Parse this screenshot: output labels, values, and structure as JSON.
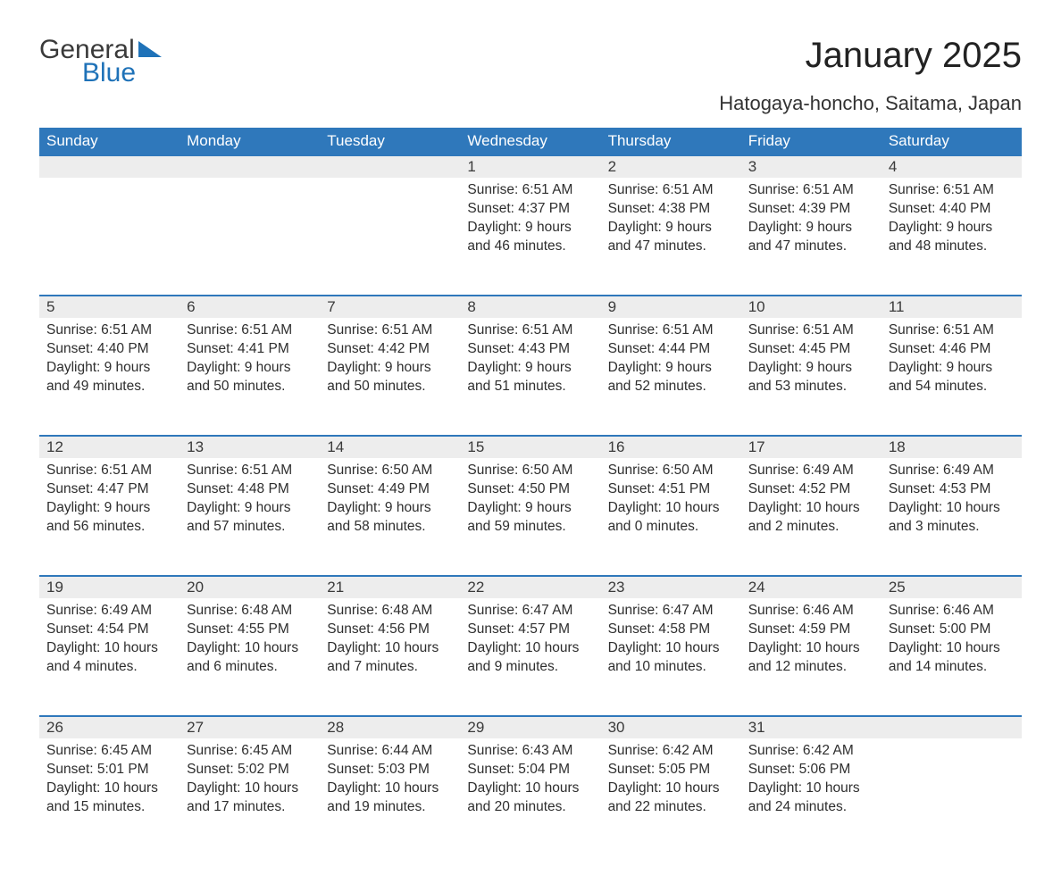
{
  "logo": {
    "word1": "General",
    "word2": "Blue"
  },
  "title": "January 2025",
  "subtitle": "Hatogaya-honcho, Saitama, Japan",
  "colors": {
    "header_bg": "#2f78bb",
    "header_text": "#ffffff",
    "daynum_bg": "#ededed",
    "daynum_border": "#2f78bb",
    "body_text": "#2e2e2e",
    "logo_gray": "#3a3a3a",
    "logo_blue": "#1f72b8",
    "page_bg": "#ffffff"
  },
  "day_headers": [
    "Sunday",
    "Monday",
    "Tuesday",
    "Wednesday",
    "Thursday",
    "Friday",
    "Saturday"
  ],
  "weeks": [
    [
      null,
      null,
      null,
      {
        "n": "1",
        "sunrise": "Sunrise: 6:51 AM",
        "sunset": "Sunset: 4:37 PM",
        "d1": "Daylight: 9 hours",
        "d2": "and 46 minutes."
      },
      {
        "n": "2",
        "sunrise": "Sunrise: 6:51 AM",
        "sunset": "Sunset: 4:38 PM",
        "d1": "Daylight: 9 hours",
        "d2": "and 47 minutes."
      },
      {
        "n": "3",
        "sunrise": "Sunrise: 6:51 AM",
        "sunset": "Sunset: 4:39 PM",
        "d1": "Daylight: 9 hours",
        "d2": "and 47 minutes."
      },
      {
        "n": "4",
        "sunrise": "Sunrise: 6:51 AM",
        "sunset": "Sunset: 4:40 PM",
        "d1": "Daylight: 9 hours",
        "d2": "and 48 minutes."
      }
    ],
    [
      {
        "n": "5",
        "sunrise": "Sunrise: 6:51 AM",
        "sunset": "Sunset: 4:40 PM",
        "d1": "Daylight: 9 hours",
        "d2": "and 49 minutes."
      },
      {
        "n": "6",
        "sunrise": "Sunrise: 6:51 AM",
        "sunset": "Sunset: 4:41 PM",
        "d1": "Daylight: 9 hours",
        "d2": "and 50 minutes."
      },
      {
        "n": "7",
        "sunrise": "Sunrise: 6:51 AM",
        "sunset": "Sunset: 4:42 PM",
        "d1": "Daylight: 9 hours",
        "d2": "and 50 minutes."
      },
      {
        "n": "8",
        "sunrise": "Sunrise: 6:51 AM",
        "sunset": "Sunset: 4:43 PM",
        "d1": "Daylight: 9 hours",
        "d2": "and 51 minutes."
      },
      {
        "n": "9",
        "sunrise": "Sunrise: 6:51 AM",
        "sunset": "Sunset: 4:44 PM",
        "d1": "Daylight: 9 hours",
        "d2": "and 52 minutes."
      },
      {
        "n": "10",
        "sunrise": "Sunrise: 6:51 AM",
        "sunset": "Sunset: 4:45 PM",
        "d1": "Daylight: 9 hours",
        "d2": "and 53 minutes."
      },
      {
        "n": "11",
        "sunrise": "Sunrise: 6:51 AM",
        "sunset": "Sunset: 4:46 PM",
        "d1": "Daylight: 9 hours",
        "d2": "and 54 minutes."
      }
    ],
    [
      {
        "n": "12",
        "sunrise": "Sunrise: 6:51 AM",
        "sunset": "Sunset: 4:47 PM",
        "d1": "Daylight: 9 hours",
        "d2": "and 56 minutes."
      },
      {
        "n": "13",
        "sunrise": "Sunrise: 6:51 AM",
        "sunset": "Sunset: 4:48 PM",
        "d1": "Daylight: 9 hours",
        "d2": "and 57 minutes."
      },
      {
        "n": "14",
        "sunrise": "Sunrise: 6:50 AM",
        "sunset": "Sunset: 4:49 PM",
        "d1": "Daylight: 9 hours",
        "d2": "and 58 minutes."
      },
      {
        "n": "15",
        "sunrise": "Sunrise: 6:50 AM",
        "sunset": "Sunset: 4:50 PM",
        "d1": "Daylight: 9 hours",
        "d2": "and 59 minutes."
      },
      {
        "n": "16",
        "sunrise": "Sunrise: 6:50 AM",
        "sunset": "Sunset: 4:51 PM",
        "d1": "Daylight: 10 hours",
        "d2": "and 0 minutes."
      },
      {
        "n": "17",
        "sunrise": "Sunrise: 6:49 AM",
        "sunset": "Sunset: 4:52 PM",
        "d1": "Daylight: 10 hours",
        "d2": "and 2 minutes."
      },
      {
        "n": "18",
        "sunrise": "Sunrise: 6:49 AM",
        "sunset": "Sunset: 4:53 PM",
        "d1": "Daylight: 10 hours",
        "d2": "and 3 minutes."
      }
    ],
    [
      {
        "n": "19",
        "sunrise": "Sunrise: 6:49 AM",
        "sunset": "Sunset: 4:54 PM",
        "d1": "Daylight: 10 hours",
        "d2": "and 4 minutes."
      },
      {
        "n": "20",
        "sunrise": "Sunrise: 6:48 AM",
        "sunset": "Sunset: 4:55 PM",
        "d1": "Daylight: 10 hours",
        "d2": "and 6 minutes."
      },
      {
        "n": "21",
        "sunrise": "Sunrise: 6:48 AM",
        "sunset": "Sunset: 4:56 PM",
        "d1": "Daylight: 10 hours",
        "d2": "and 7 minutes."
      },
      {
        "n": "22",
        "sunrise": "Sunrise: 6:47 AM",
        "sunset": "Sunset: 4:57 PM",
        "d1": "Daylight: 10 hours",
        "d2": "and 9 minutes."
      },
      {
        "n": "23",
        "sunrise": "Sunrise: 6:47 AM",
        "sunset": "Sunset: 4:58 PM",
        "d1": "Daylight: 10 hours",
        "d2": "and 10 minutes."
      },
      {
        "n": "24",
        "sunrise": "Sunrise: 6:46 AM",
        "sunset": "Sunset: 4:59 PM",
        "d1": "Daylight: 10 hours",
        "d2": "and 12 minutes."
      },
      {
        "n": "25",
        "sunrise": "Sunrise: 6:46 AM",
        "sunset": "Sunset: 5:00 PM",
        "d1": "Daylight: 10 hours",
        "d2": "and 14 minutes."
      }
    ],
    [
      {
        "n": "26",
        "sunrise": "Sunrise: 6:45 AM",
        "sunset": "Sunset: 5:01 PM",
        "d1": "Daylight: 10 hours",
        "d2": "and 15 minutes."
      },
      {
        "n": "27",
        "sunrise": "Sunrise: 6:45 AM",
        "sunset": "Sunset: 5:02 PM",
        "d1": "Daylight: 10 hours",
        "d2": "and 17 minutes."
      },
      {
        "n": "28",
        "sunrise": "Sunrise: 6:44 AM",
        "sunset": "Sunset: 5:03 PM",
        "d1": "Daylight: 10 hours",
        "d2": "and 19 minutes."
      },
      {
        "n": "29",
        "sunrise": "Sunrise: 6:43 AM",
        "sunset": "Sunset: 5:04 PM",
        "d1": "Daylight: 10 hours",
        "d2": "and 20 minutes."
      },
      {
        "n": "30",
        "sunrise": "Sunrise: 6:42 AM",
        "sunset": "Sunset: 5:05 PM",
        "d1": "Daylight: 10 hours",
        "d2": "and 22 minutes."
      },
      {
        "n": "31",
        "sunrise": "Sunrise: 6:42 AM",
        "sunset": "Sunset: 5:06 PM",
        "d1": "Daylight: 10 hours",
        "d2": "and 24 minutes."
      },
      null
    ]
  ]
}
